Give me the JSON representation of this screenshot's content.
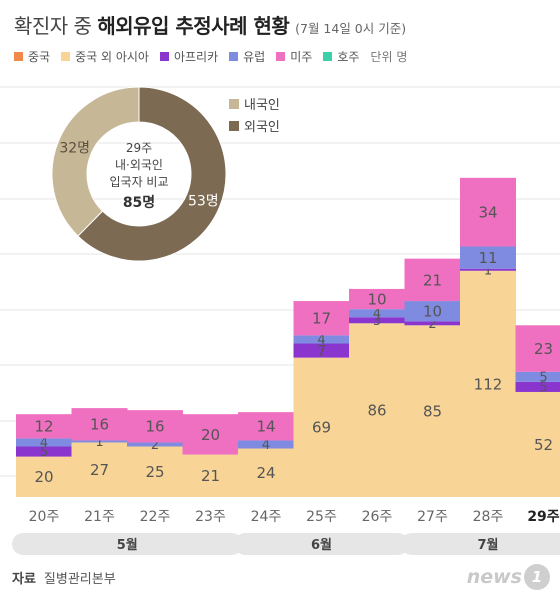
{
  "title": {
    "prefix": "확진자 중 ",
    "main": "해외유입 추정사례 현황",
    "note": "(7월 14일 0시 기준)"
  },
  "legend": {
    "items": [
      {
        "label": "중국",
        "color": "#f0894a"
      },
      {
        "label": "중국 외 아시아",
        "color": "#f8d596"
      },
      {
        "label": "아프리카",
        "color": "#8b35cf"
      },
      {
        "label": "유럽",
        "color": "#7f8be0"
      },
      {
        "label": "미주",
        "color": "#ef6fc0"
      },
      {
        "label": "호주",
        "color": "#3ccfa8"
      }
    ],
    "unit": "단위 명"
  },
  "donut": {
    "center_lines": [
      "29주",
      "내·외국인",
      "입국자 비교"
    ],
    "center_total": "85명",
    "slices": [
      {
        "label": "내국인",
        "value": 32,
        "value_label": "32명",
        "color": "#c6b896"
      },
      {
        "label": "외국인",
        "value": 53,
        "value_label": "53명",
        "color": "#7c6a52"
      }
    ]
  },
  "chart_data": {
    "type": "bar",
    "stacked": true,
    "categories": [
      "20주",
      "21주",
      "22주",
      "23주",
      "24주",
      "25주",
      "26주",
      "27주",
      "28주",
      "29주"
    ],
    "series": [
      {
        "name": "중국",
        "color": "#f0894a",
        "values": [
          0,
          0,
          0,
          0,
          0,
          0,
          0,
          0,
          0,
          0
        ]
      },
      {
        "name": "중국 외 아시아",
        "color": "#f8d596",
        "values": [
          20,
          27,
          25,
          21,
          24,
          69,
          86,
          85,
          112,
          52
        ]
      },
      {
        "name": "아프리카",
        "color": "#8b35cf",
        "values": [
          5,
          0,
          0,
          0,
          0,
          7,
          3,
          2,
          1,
          5
        ]
      },
      {
        "name": "유럽",
        "color": "#7f8be0",
        "values": [
          4,
          1,
          2,
          0,
          4,
          4,
          4,
          10,
          11,
          5
        ]
      },
      {
        "name": "미주",
        "color": "#ef6fc0",
        "values": [
          12,
          16,
          16,
          20,
          14,
          17,
          10,
          21,
          34,
          23
        ]
      },
      {
        "name": "호주",
        "color": "#3ccfa8",
        "values": [
          0,
          0,
          0,
          0,
          0,
          0,
          0,
          0,
          0,
          0
        ]
      }
    ],
    "highlight_category": "29주",
    "months": [
      {
        "label": "5월",
        "from": "20주",
        "to": "23주"
      },
      {
        "label": "6월",
        "from": "24주",
        "to": "26주"
      },
      {
        "label": "7월",
        "from": "27주",
        "to": "29주"
      }
    ],
    "grid": true
  },
  "source": {
    "label": "자료",
    "text": "질병관리본부"
  },
  "logo": {
    "text": "news",
    "mark": "1"
  }
}
